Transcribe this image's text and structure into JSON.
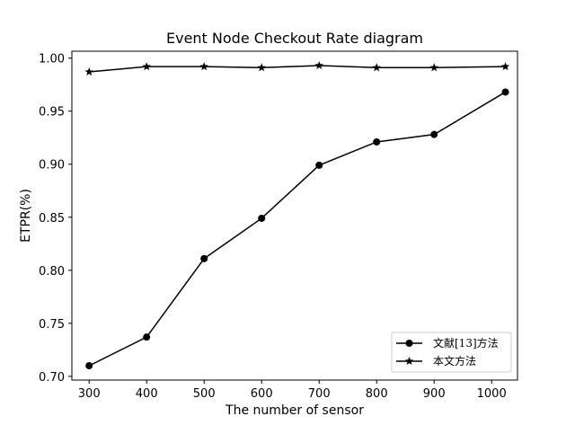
{
  "chart_data": {
    "type": "line",
    "title": "Event Node Checkout Rate diagram",
    "xlabel": "The number of sensor",
    "ylabel": "ETPR(%)",
    "xlim": [
      270,
      1045
    ],
    "ylim": [
      0.6965,
      1.0065
    ],
    "xticks": [
      300,
      400,
      500,
      600,
      700,
      800,
      900,
      1000
    ],
    "xtick_labels": [
      "300",
      "400",
      "500",
      "600",
      "700",
      "800",
      "900",
      "1000"
    ],
    "yticks": [
      0.7,
      0.75,
      0.8,
      0.85,
      0.9,
      0.95,
      1.0
    ],
    "ytick_labels": [
      "0.70",
      "0.75",
      "0.80",
      "0.85",
      "0.90",
      "0.95",
      "1.00"
    ],
    "grid": false,
    "legend_position": "lower-right",
    "series": [
      {
        "name": "文献[13]方法",
        "marker": "circle",
        "color": "#000000",
        "x": [
          300,
          400,
          500,
          600,
          700,
          800,
          900,
          1024
        ],
        "y": [
          0.71,
          0.737,
          0.811,
          0.849,
          0.899,
          0.921,
          0.928,
          0.968
        ]
      },
      {
        "name": "本文方法",
        "marker": "star",
        "color": "#000000",
        "x": [
          300,
          400,
          500,
          600,
          700,
          800,
          900,
          1024
        ],
        "y": [
          0.987,
          0.992,
          0.992,
          0.991,
          0.993,
          0.991,
          0.991,
          0.992
        ]
      }
    ]
  }
}
